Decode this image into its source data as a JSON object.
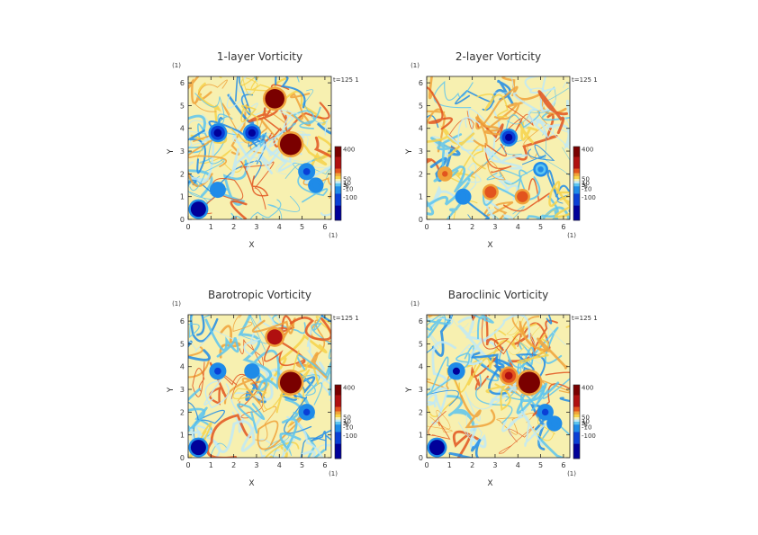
{
  "chart_data": [
    {
      "type": "heatmap",
      "title": "1-layer Vorticity",
      "xlabel": "X",
      "ylabel": "Y",
      "xunit": "(1)",
      "yunit": "(1)",
      "xlim": [
        0,
        6.28
      ],
      "ylim": [
        0,
        6.28
      ],
      "x_ticks": [
        "0",
        "1",
        "2",
        "3",
        "4",
        "5",
        "6"
      ],
      "y_ticks": [
        "0",
        "1",
        "2",
        "3",
        "4",
        "5",
        "6"
      ],
      "time_label": "t=125 1",
      "colorbar": {
        "labels": [
          "400",
          "50",
          "10",
          "5",
          "-5",
          "-10",
          "-100"
        ]
      },
      "features": [
        {
          "x": 4.5,
          "y": 3.3,
          "value": 400
        },
        {
          "x": 3.8,
          "y": 5.3,
          "value": 300
        },
        {
          "x": 0.45,
          "y": 0.45,
          "value": -150
        },
        {
          "x": 1.3,
          "y": 3.8,
          "value": -120
        },
        {
          "x": 2.8,
          "y": 3.8,
          "value": -100
        },
        {
          "x": 5.2,
          "y": 2.1,
          "value": -80
        },
        {
          "x": 1.3,
          "y": 1.3,
          "value": -60
        },
        {
          "x": 5.6,
          "y": 1.5,
          "value": -50
        }
      ]
    },
    {
      "type": "heatmap",
      "title": "2-layer Vorticity",
      "xlabel": "X",
      "ylabel": "Y",
      "xunit": "(1)",
      "yunit": "(1)",
      "xlim": [
        0,
        6.28
      ],
      "ylim": [
        0,
        6.28
      ],
      "x_ticks": [
        "0",
        "1",
        "2",
        "3",
        "4",
        "5",
        "6"
      ],
      "y_ticks": [
        "0",
        "1",
        "2",
        "3",
        "4",
        "5",
        "6"
      ],
      "time_label": "t=125 1",
      "colorbar": {
        "labels": [
          "400",
          "50",
          "10",
          "5",
          "-5",
          "-10",
          "-100"
        ]
      },
      "features": [
        {
          "x": 3.6,
          "y": 3.6,
          "value": -100
        },
        {
          "x": 1.6,
          "y": 1.0,
          "value": -60
        },
        {
          "x": 2.8,
          "y": 1.2,
          "value": 60
        },
        {
          "x": 4.2,
          "y": 1.0,
          "value": 50
        },
        {
          "x": 0.8,
          "y": 2.0,
          "value": 40
        },
        {
          "x": 5.0,
          "y": 2.2,
          "value": -40
        }
      ]
    },
    {
      "type": "heatmap",
      "title": "Barotropic Vorticity",
      "xlabel": "X",
      "ylabel": "Y",
      "xunit": "(1)",
      "yunit": "(1)",
      "xlim": [
        0,
        6.28
      ],
      "ylim": [
        0,
        6.28
      ],
      "x_ticks": [
        "0",
        "1",
        "2",
        "3",
        "4",
        "5",
        "6"
      ],
      "y_ticks": [
        "0",
        "1",
        "2",
        "3",
        "4",
        "5",
        "6"
      ],
      "time_label": "t=125 1",
      "colorbar": {
        "labels": [
          "400",
          "50",
          "10",
          "5",
          "-5",
          "-10",
          "-100"
        ]
      },
      "features": [
        {
          "x": 4.5,
          "y": 3.3,
          "value": 400
        },
        {
          "x": 3.8,
          "y": 5.3,
          "value": 150
        },
        {
          "x": 0.45,
          "y": 0.45,
          "value": -150
        },
        {
          "x": 1.3,
          "y": 3.8,
          "value": -80
        },
        {
          "x": 5.2,
          "y": 2.0,
          "value": -70
        },
        {
          "x": 2.8,
          "y": 3.8,
          "value": -50
        }
      ]
    },
    {
      "type": "heatmap",
      "title": "Baroclinic Vorticity",
      "xlabel": "X",
      "ylabel": "Y",
      "xunit": "(1)",
      "yunit": "(1)",
      "xlim": [
        0,
        6.28
      ],
      "ylim": [
        0,
        6.28
      ],
      "x_ticks": [
        "0",
        "1",
        "2",
        "3",
        "4",
        "5",
        "6"
      ],
      "y_ticks": [
        "0",
        "1",
        "2",
        "3",
        "4",
        "5",
        "6"
      ],
      "time_label": "t=125 1",
      "colorbar": {
        "labels": [
          "400",
          "50",
          "10",
          "5",
          "-5",
          "-10",
          "-100"
        ]
      },
      "features": [
        {
          "x": 4.5,
          "y": 3.3,
          "value": 400
        },
        {
          "x": 3.6,
          "y": 3.6,
          "value": 120
        },
        {
          "x": 0.45,
          "y": 0.45,
          "value": -150
        },
        {
          "x": 1.3,
          "y": 3.8,
          "value": -90
        },
        {
          "x": 5.2,
          "y": 2.0,
          "value": -70
        },
        {
          "x": 5.6,
          "y": 1.5,
          "value": -50
        }
      ]
    }
  ],
  "colors": {
    "colormap": [
      "#00009a",
      "#0a3fd6",
      "#1f8be8",
      "#5cc4f0",
      "#bfe9f7",
      "#f7f0b0",
      "#f6d24a",
      "#f0a23a",
      "#e2541e",
      "#b01010",
      "#7a0000"
    ],
    "neutral": "#f7f0b0"
  }
}
